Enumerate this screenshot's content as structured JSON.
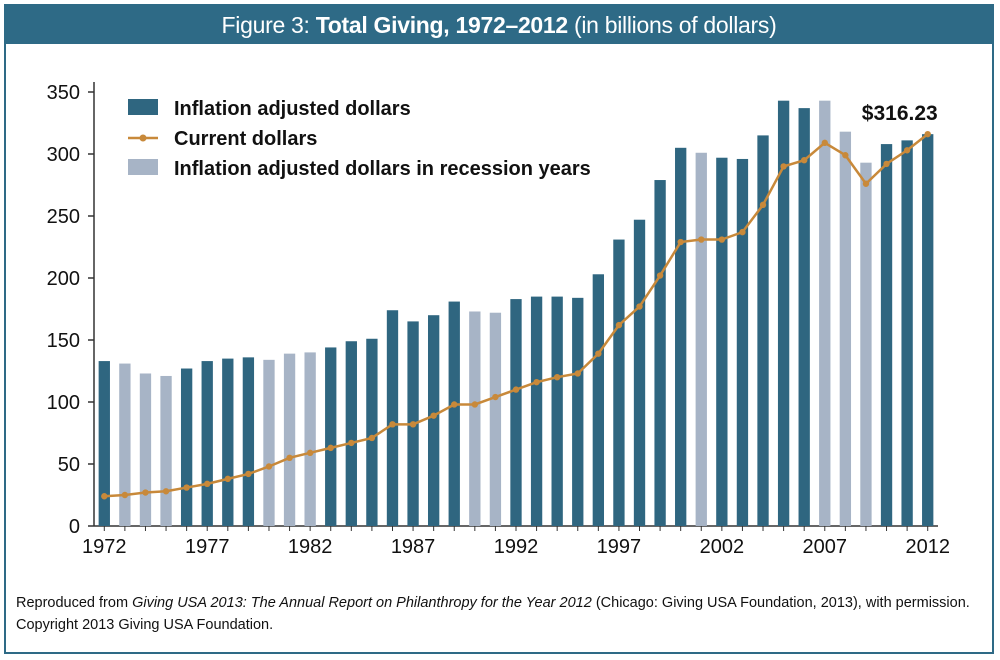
{
  "header": {
    "prefix": "Figure 3:",
    "title_bold": "Total Giving, 1972–2012",
    "title_rest": "(in billions of dollars)"
  },
  "source_note": {
    "lead": "Reproduced from",
    "italic": "Giving USA 2013: The Annual Report on Philanthropy for the Year 2012",
    "tail": "(Chicago: Giving USA Foundation, 2013), with permission.",
    "copyright": "Copyright 2013 Giving USA Foundation."
  },
  "colors": {
    "frame": "#2e6a86",
    "bar_normal": "#2f6680",
    "bar_recession": "#a7b4c6",
    "line": "#c8893a"
  },
  "chart_data": {
    "type": "bar",
    "title": "Total Giving, 1972–2012",
    "ylim": [
      0,
      350
    ],
    "yticks": [
      0,
      50,
      100,
      150,
      200,
      250,
      300,
      350
    ],
    "xtick_labels": [
      "1972",
      "1977",
      "1982",
      "1987",
      "1992",
      "1997",
      "2002",
      "2007",
      "2012"
    ],
    "legend_position": "top-left",
    "grid": false,
    "annotation": "$316.23",
    "categories": [
      1972,
      1973,
      1974,
      1975,
      1976,
      1977,
      1978,
      1979,
      1980,
      1981,
      1982,
      1983,
      1984,
      1985,
      1986,
      1987,
      1988,
      1989,
      1990,
      1991,
      1992,
      1993,
      1994,
      1995,
      1996,
      1997,
      1998,
      1999,
      2000,
      2001,
      2002,
      2003,
      2004,
      2005,
      2006,
      2007,
      2008,
      2009,
      2010,
      2011,
      2012
    ],
    "recession_years": [
      1973,
      1974,
      1975,
      1980,
      1981,
      1982,
      1990,
      1991,
      2001,
      2007,
      2008,
      2009
    ],
    "series": [
      {
        "name": "Inflation adjusted dollars",
        "kind": "bar",
        "values": [
          133,
          131,
          123,
          121,
          127,
          133,
          135,
          136,
          134,
          139,
          140,
          144,
          149,
          151,
          174,
          165,
          170,
          181,
          173,
          172,
          183,
          185,
          185,
          184,
          203,
          231,
          247,
          279,
          305,
          301,
          297,
          296,
          315,
          343,
          337,
          343,
          318,
          293,
          308,
          311,
          316
        ]
      },
      {
        "name": "Current dollars",
        "kind": "line",
        "values": [
          24,
          25,
          27,
          28,
          31,
          34,
          38,
          42,
          48,
          55,
          59,
          63,
          67,
          71,
          82,
          82,
          89,
          98,
          98,
          104,
          110,
          116,
          120,
          123,
          139,
          162,
          177,
          202,
          229,
          231,
          231,
          237,
          259,
          290,
          295,
          309,
          299,
          276,
          292,
          303,
          316
        ]
      }
    ],
    "legend_labels": [
      "Inflation adjusted dollars",
      "Current dollars",
      "Inflation adjusted dollars in recession years"
    ]
  }
}
